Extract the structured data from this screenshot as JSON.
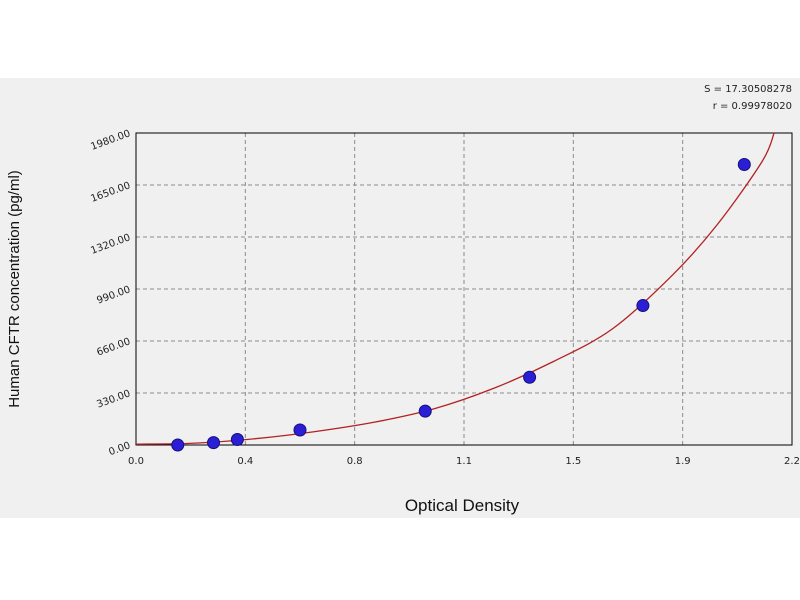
{
  "chart_data": {
    "type": "scatter",
    "xlabel": "Optical Density",
    "ylabel": "Human  CFTR concentration (pg/ml)",
    "xlim": [
      0,
      2.2
    ],
    "ylim": [
      0,
      1980
    ],
    "x_ticks": [
      "0.0",
      "0.4",
      "0.8",
      "1.1",
      "1.5",
      "1.9",
      "2.2"
    ],
    "y_ticks": [
      "0.00",
      "330.00",
      "660.00",
      "990.00",
      "1320.00",
      "1650.00",
      "1980.00"
    ],
    "grid": true,
    "stats": [
      "S = 17.30508278",
      "r = 0.99978020"
    ],
    "series": [
      {
        "kind": "points",
        "color": "#2b1fd6",
        "points": [
          {
            "x": 0.14,
            "y": 0
          },
          {
            "x": 0.26,
            "y": 15
          },
          {
            "x": 0.34,
            "y": 35
          },
          {
            "x": 0.55,
            "y": 95
          },
          {
            "x": 0.97,
            "y": 215
          },
          {
            "x": 1.32,
            "y": 430
          },
          {
            "x": 1.7,
            "y": 885
          },
          {
            "x": 2.04,
            "y": 1780
          }
        ]
      },
      {
        "kind": "fit-curve",
        "color": "#b22222",
        "points": [
          {
            "x": 0.0,
            "y": 5
          },
          {
            "x": 0.2,
            "y": 12
          },
          {
            "x": 0.4,
            "y": 40
          },
          {
            "x": 0.6,
            "y": 85
          },
          {
            "x": 0.8,
            "y": 145
          },
          {
            "x": 1.0,
            "y": 230
          },
          {
            "x": 1.2,
            "y": 360
          },
          {
            "x": 1.4,
            "y": 530
          },
          {
            "x": 1.6,
            "y": 740
          },
          {
            "x": 1.8,
            "y": 1080
          },
          {
            "x": 1.95,
            "y": 1400
          },
          {
            "x": 2.1,
            "y": 1800
          },
          {
            "x": 2.14,
            "y": 1980
          }
        ]
      }
    ]
  }
}
